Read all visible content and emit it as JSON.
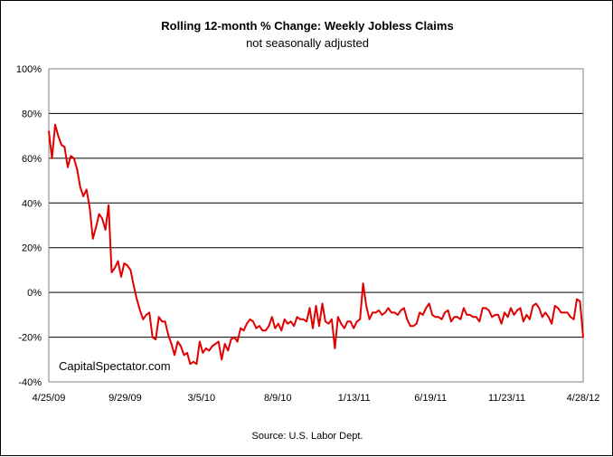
{
  "chart_data": {
    "type": "line",
    "title": "Rolling 12-month %  Change: Weekly Jobless Claims",
    "subtitle": "not seasonally adjusted",
    "source": "Source: U.S. Labor Dept.",
    "watermark": "CapitalSpectator.com",
    "xlabel": "",
    "ylabel": "",
    "ylim": [
      -40,
      100
    ],
    "grid": true,
    "legend": "none",
    "line_color": "#e00000",
    "y_ticks": [
      100,
      80,
      60,
      40,
      20,
      0,
      -20,
      -40
    ],
    "y_tick_labels": [
      "100%",
      "80%",
      "60%",
      "40%",
      "20%",
      "0%",
      "-20%",
      "-40%"
    ],
    "x_tick_labels": [
      "4/25/09",
      "9/29/09",
      "3/5/10",
      "8/9/10",
      "1/13/11",
      "6/19/11",
      "11/23/11",
      "4/28/12"
    ],
    "series": [
      {
        "values": [
          72,
          60,
          75,
          70,
          66,
          65,
          56,
          61,
          60,
          55,
          47,
          43,
          46,
          38,
          24,
          29,
          35,
          33,
          28,
          39,
          9,
          11,
          14,
          7,
          13,
          12,
          10,
          3,
          -3,
          -8,
          -12,
          -10,
          -9,
          -20,
          -21,
          -11,
          -13,
          -13,
          -19,
          -23,
          -28,
          -22,
          -24,
          -28,
          -27,
          -32,
          -31,
          -32,
          -22,
          -27,
          -25,
          -26,
          -24,
          -23,
          -22,
          -30,
          -23,
          -26,
          -21,
          -20,
          -22,
          -16,
          -17,
          -14,
          -12,
          -13,
          -16,
          -15,
          -17,
          -17,
          -15,
          -11,
          -16,
          -14,
          -17,
          -12,
          -14,
          -13,
          -15,
          -11,
          -12,
          -12,
          -13,
          -7,
          -16,
          -6,
          -15,
          -5,
          -13,
          -14,
          -12,
          -25,
          -11,
          -14,
          -16,
          -13,
          -13,
          -16,
          -13,
          -12,
          4,
          -6,
          -12,
          -9,
          -9,
          -8,
          -10,
          -9,
          -7,
          -9,
          -9,
          -10,
          -8,
          -7,
          -12,
          -15,
          -15,
          -14,
          -9,
          -10,
          -7,
          -5,
          -10,
          -11,
          -11,
          -12,
          -9,
          -8,
          -13,
          -11,
          -11,
          -12,
          -7,
          -10,
          -10,
          -11,
          -11,
          -13,
          -7,
          -7,
          -8,
          -11,
          -10,
          -10,
          -14,
          -9,
          -11,
          -7,
          -10,
          -8,
          -7,
          -13,
          -10,
          -12,
          -6,
          -5,
          -7,
          -11,
          -9,
          -11,
          -14,
          -6,
          -7,
          -9,
          -9,
          -9,
          -11,
          -12,
          -3,
          -4,
          -20
        ]
      }
    ]
  }
}
